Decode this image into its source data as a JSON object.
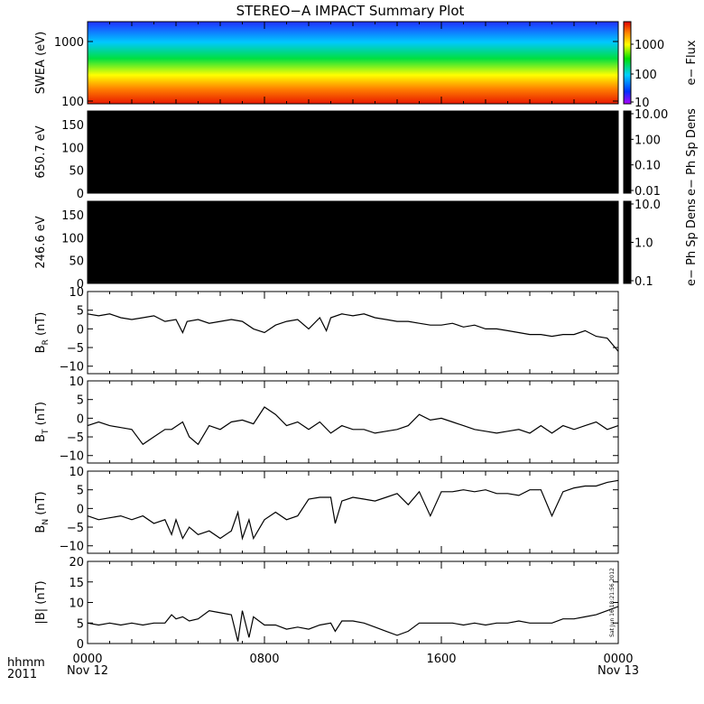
{
  "title": "STEREO−A IMPACT Summary Plot",
  "footer": {
    "left_top": "hhmm",
    "left_bottom": "2011",
    "x_ticks": [
      "0000",
      "0800",
      "1600",
      "0000"
    ],
    "x_dates": [
      "Nov 12",
      "",
      "",
      "Nov 13"
    ],
    "timestamp": "Sat Jun 16 18:21:56 2012"
  },
  "colors": {
    "ink": "#000000",
    "background": "#ffffff",
    "spectrogram_low": "#2020e0",
    "spectrogram_high": "#e02000"
  },
  "chart_data": [
    {
      "type": "heatmap",
      "ylabel": "SWEA (eV)",
      "yscale": "log",
      "ylim": [
        100,
        1800
      ],
      "yticks": [
        "1000",
        "100"
      ],
      "colorbar": {
        "label": "e− Flux",
        "scale": "log",
        "ticks": [
          "1000",
          "100",
          "10"
        ],
        "range": [
          10,
          10000
        ]
      },
      "xlim_hours": [
        0,
        24
      ],
      "segments": [
        {
          "t0": 0,
          "t1": 5.6,
          "intensity": 0.35
        },
        {
          "t0": 5.6,
          "t1": 14.8,
          "intensity": 0.55
        },
        {
          "t0": 14.8,
          "t1": 20.2,
          "intensity": 0.42
        },
        {
          "t0": 20.2,
          "t1": 24,
          "intensity": 0.3
        }
      ]
    },
    {
      "type": "heatmap",
      "ylabel": "650.7 eV",
      "ylim": [
        0,
        180
      ],
      "yticks": [
        "150",
        "100",
        "50",
        "0"
      ],
      "colorbar": {
        "label": "e− Ph Sp Dens",
        "scale": "log",
        "ticks": [
          "10.00",
          "1.00",
          "0.10",
          "0.01"
        ]
      },
      "fill": "#000000"
    },
    {
      "type": "heatmap",
      "ylabel": "246.6 eV",
      "ylim": [
        0,
        180
      ],
      "yticks": [
        "150",
        "100",
        "50",
        "0"
      ],
      "colorbar": {
        "label": "e− Ph Sp Dens",
        "scale": "log",
        "ticks": [
          "10.0",
          "1.0",
          "0.1"
        ]
      },
      "fill": "#000000"
    },
    {
      "type": "line",
      "ylabel_main": "B",
      "ylabel_sub": "R",
      "ylabel_unit": " (nT)",
      "ylim": [
        -12,
        10
      ],
      "yticks": [
        "10",
        "5",
        "0",
        "−5",
        "−10"
      ],
      "x": [
        0,
        0.5,
        1,
        1.5,
        2,
        2.5,
        3,
        3.5,
        4,
        4.3,
        4.5,
        5,
        5.5,
        6,
        6.5,
        7,
        7.5,
        8,
        8.5,
        9,
        9.5,
        10,
        10.5,
        10.8,
        11,
        11.5,
        12,
        12.5,
        13,
        13.5,
        14,
        14.5,
        15,
        15.5,
        16,
        16.5,
        17,
        17.5,
        18,
        18.5,
        19,
        19.5,
        20,
        20.5,
        21,
        21.5,
        22,
        22.5,
        23,
        23.5,
        24
      ],
      "y": [
        4,
        3.5,
        4,
        3,
        2.5,
        3,
        3.5,
        2,
        2.5,
        -1,
        2,
        2.5,
        1.5,
        2,
        2.5,
        2,
        0,
        -1,
        1,
        2,
        2.5,
        0,
        3,
        -0.5,
        3,
        4,
        3.5,
        4,
        3,
        2.5,
        2,
        2,
        1.5,
        1,
        1,
        1.5,
        0.5,
        1,
        0,
        0,
        -0.5,
        -1,
        -1.5,
        -1.5,
        -2,
        -1.5,
        -1.5,
        -0.5,
        -2,
        -2.5,
        -6
      ]
    },
    {
      "type": "line",
      "ylabel_main": "B",
      "ylabel_sub": "T",
      "ylabel_unit": " (nT)",
      "ylim": [
        -12,
        10
      ],
      "yticks": [
        "10",
        "5",
        "0",
        "−5",
        "−10"
      ],
      "x": [
        0,
        0.5,
        1,
        1.5,
        2,
        2.5,
        3,
        3.5,
        3.8,
        4.3,
        4.6,
        5,
        5.5,
        6,
        6.5,
        7,
        7.5,
        8,
        8.5,
        9,
        9.5,
        10,
        10.5,
        11,
        11.5,
        12,
        12.5,
        13,
        13.5,
        14,
        14.5,
        15,
        15.5,
        16,
        16.5,
        17,
        17.5,
        18,
        18.5,
        19,
        19.5,
        20,
        20.5,
        21,
        21.5,
        22,
        22.5,
        23,
        23.5,
        24
      ],
      "y": [
        -2,
        -1,
        -2,
        -2.5,
        -3,
        -7,
        -5,
        -3,
        -3,
        -1,
        -5,
        -7,
        -2,
        -3,
        -1,
        -0.5,
        -1.5,
        3,
        1,
        -2,
        -1,
        -3,
        -1,
        -4,
        -2,
        -3,
        -3,
        -4,
        -3.5,
        -3,
        -2,
        1,
        -0.5,
        0,
        -1,
        -2,
        -3,
        -3.5,
        -4,
        -3.5,
        -3,
        -4,
        -2,
        -4,
        -2,
        -3,
        -2,
        -1,
        -3,
        -2
      ]
    },
    {
      "type": "line",
      "ylabel_main": "B",
      "ylabel_sub": "N",
      "ylabel_unit": " (nT)",
      "ylim": [
        -12,
        10
      ],
      "yticks": [
        "10",
        "5",
        "0",
        "−5",
        "−10"
      ],
      "x": [
        0,
        0.5,
        1,
        1.5,
        2,
        2.5,
        3,
        3.5,
        3.8,
        4,
        4.3,
        4.6,
        5,
        5.5,
        6,
        6.5,
        6.8,
        7,
        7.3,
        7.5,
        8,
        8.5,
        9,
        9.5,
        10,
        10.5,
        11,
        11.2,
        11.5,
        12,
        12.5,
        13,
        13.5,
        14,
        14.5,
        15,
        15.5,
        16,
        16.5,
        17,
        17.5,
        18,
        18.5,
        19,
        19.5,
        20,
        20.5,
        21,
        21.5,
        22,
        22.5,
        23,
        23.5,
        24
      ],
      "y": [
        -2,
        -3,
        -2.5,
        -2,
        -3,
        -2,
        -4,
        -3,
        -7,
        -3,
        -8,
        -5,
        -7,
        -6,
        -8,
        -6,
        -1,
        -8,
        -3,
        -8,
        -3,
        -1,
        -3,
        -2,
        2.5,
        3,
        3,
        -4,
        2,
        3,
        2.5,
        2,
        3,
        4,
        1,
        4.5,
        -2,
        4.5,
        4.5,
        5,
        4.5,
        5,
        4,
        4,
        3.5,
        5,
        5,
        -2,
        4.5,
        5.5,
        6,
        6,
        7,
        7.5
      ]
    },
    {
      "type": "line",
      "ylabel_main": "|B| (nT)",
      "ylim": [
        0,
        20
      ],
      "yticks": [
        "20",
        "15",
        "10",
        "5",
        "0"
      ],
      "x": [
        0,
        0.5,
        1,
        1.5,
        2,
        2.5,
        3,
        3.5,
        3.8,
        4,
        4.3,
        4.6,
        5,
        5.5,
        6,
        6.5,
        6.8,
        7,
        7.3,
        7.5,
        8,
        8.5,
        9,
        9.5,
        10,
        10.5,
        11,
        11.2,
        11.5,
        12,
        12.5,
        13,
        13.5,
        14,
        14.5,
        15,
        15.5,
        16,
        16.5,
        17,
        17.5,
        18,
        18.5,
        19,
        19.5,
        20,
        20.5,
        21,
        21.5,
        22,
        22.5,
        23,
        23.5,
        24
      ],
      "y": [
        5,
        4.5,
        5,
        4.5,
        5,
        4.5,
        5,
        5,
        7,
        6,
        6.5,
        5.5,
        6,
        8,
        7.5,
        7,
        0.5,
        8,
        1.5,
        6.5,
        4.5,
        4.5,
        3.5,
        4,
        3.5,
        4.5,
        5,
        3,
        5.5,
        5.5,
        5,
        4,
        3,
        2,
        3,
        5,
        5,
        5,
        5,
        4.5,
        5,
        4.5,
        5,
        5,
        5.5,
        5,
        5,
        5,
        6,
        6,
        6.5,
        7,
        8,
        9
      ]
    }
  ]
}
